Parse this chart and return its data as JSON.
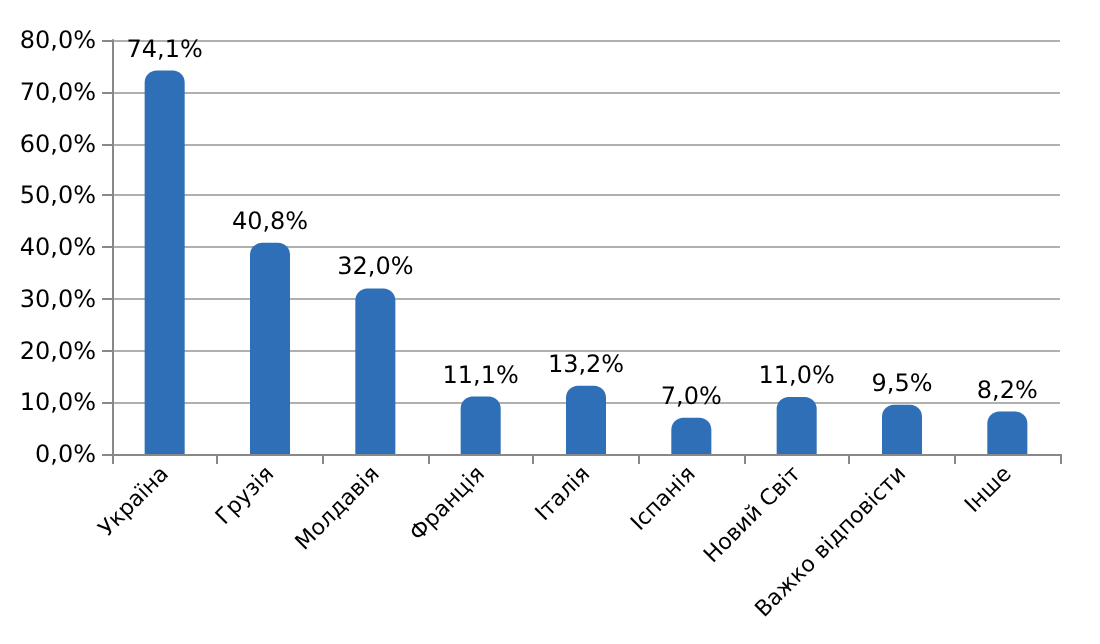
{
  "chart_data": {
    "type": "bar",
    "categories": [
      "Україна",
      "Грузія",
      "Молдавія",
      "Франція",
      "Італія",
      "Іспанія",
      "Новий Світ",
      "Важко відповісти",
      "Інше"
    ],
    "values": [
      74.1,
      40.8,
      32.0,
      11.1,
      13.2,
      7.0,
      11.0,
      9.5,
      8.2
    ],
    "value_labels": [
      "74,1%",
      "40,8%",
      "32,0%",
      "11,1%",
      "13,2%",
      "7,0%",
      "11,0%",
      "9,5%",
      "8,2%"
    ],
    "color": "#2f6fb8",
    "ylim": [
      0,
      80
    ],
    "yticks": [
      {
        "value": 0,
        "label": "0,0%"
      },
      {
        "value": 10,
        "label": "10,0%"
      },
      {
        "value": 20,
        "label": "20,0%"
      },
      {
        "value": 30,
        "label": "30,0%"
      },
      {
        "value": 40,
        "label": "40,0%"
      },
      {
        "value": 50,
        "label": "50,0%"
      },
      {
        "value": 60,
        "label": "60,0%"
      },
      {
        "value": 70,
        "label": "70,0%"
      },
      {
        "value": 80,
        "label": "80,0%"
      }
    ],
    "grid": "y"
  }
}
